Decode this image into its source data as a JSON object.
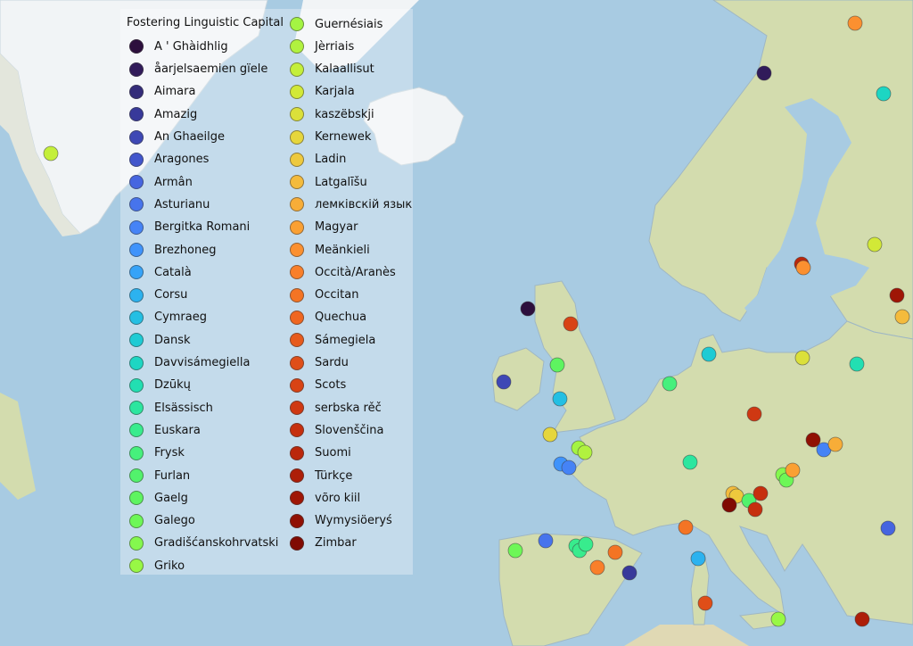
{
  "legend": {
    "title": "Fostering Linguistic Capital",
    "items": [
      {
        "label": "A ' Ghàidhlig",
        "color": "#2d0f3d"
      },
      {
        "label": "åarjelsaemien gïele",
        "color": "#311b5a"
      },
      {
        "label": "Aimara",
        "color": "#342c7a"
      },
      {
        "label": "Amazig",
        "color": "#38399a"
      },
      {
        "label": "An Ghaeilge",
        "color": "#3e48b5"
      },
      {
        "label": "Aragones",
        "color": "#4256cc"
      },
      {
        "label": "Armân",
        "color": "#4665e0"
      },
      {
        "label": "Asturianu",
        "color": "#4774ec"
      },
      {
        "label": "Bergitka Romani",
        "color": "#4583f6"
      },
      {
        "label": "Brezhoneg",
        "color": "#3f93fb"
      },
      {
        "label": "Català",
        "color": "#36a3f8"
      },
      {
        "label": "Corsu",
        "color": "#2cb2ef"
      },
      {
        "label": "Cymraeg",
        "color": "#24bfe3"
      },
      {
        "label": "Dansk",
        "color": "#1ecbd4"
      },
      {
        "label": "Davvisámegiella",
        "color": "#1dd6c3"
      },
      {
        "label": "Dzūkų",
        "color": "#22dfb2"
      },
      {
        "label": "Elsässisch",
        "color": "#2ce69f"
      },
      {
        "label": "Euskara",
        "color": "#38ec8d"
      },
      {
        "label": "Frysk",
        "color": "#46f07c"
      },
      {
        "label": "Furlan",
        "color": "#52f26c"
      },
      {
        "label": "Gaelg",
        "color": "#5ef460"
      },
      {
        "label": "Galego",
        "color": "#6df757"
      },
      {
        "label": "Gradišćanskohrvatski",
        "color": "#84f84e"
      },
      {
        "label": "Griko",
        "color": "#98f845"
      },
      {
        "label": "Guernésiais",
        "color": "#a4f443"
      },
      {
        "label": "Jèrriais",
        "color": "#b1f23f"
      },
      {
        "label": "Kalaallisut",
        "color": "#c4ef3a"
      },
      {
        "label": "Karjala",
        "color": "#d2e937"
      },
      {
        "label": "kaszëbskji",
        "color": "#dbe03a"
      },
      {
        "label": "Kernewek",
        "color": "#e6d63c"
      },
      {
        "label": "Ladin",
        "color": "#eec93d"
      },
      {
        "label": "Latgalīšu",
        "color": "#f4bb3c"
      },
      {
        "label": "лемківскій язык",
        "color": "#f7ad38"
      },
      {
        "label": "Magyar",
        "color": "#faa033"
      },
      {
        "label": "Meänkieli",
        "color": "#fb9030"
      },
      {
        "label": "Occità/Aranès",
        "color": "#f97f2a"
      },
      {
        "label": "Occitan",
        "color": "#f47424"
      },
      {
        "label": "Quechua",
        "color": "#ef6620"
      },
      {
        "label": "Sámegiela",
        "color": "#e75a1c"
      },
      {
        "label": "Sardu",
        "color": "#df4e18"
      },
      {
        "label": "Scots",
        "color": "#d84314"
      },
      {
        "label": "serbska rěč",
        "color": "#cf3812"
      },
      {
        "label": "Slovenščina",
        "color": "#c62f0e"
      },
      {
        "label": "Suomi",
        "color": "#bb270b"
      },
      {
        "label": "Türkçe",
        "color": "#ad1e08"
      },
      {
        "label": "võro kiil",
        "color": "#9f1606"
      },
      {
        "label": "Wymysiöeryś",
        "color": "#901004"
      },
      {
        "label": "Zimbar",
        "color": "#800a02"
      }
    ]
  },
  "colors": {
    "ocean": "#a8cbe2",
    "land": "#d3dcae",
    "ice": "#f3f6f8"
  }
}
